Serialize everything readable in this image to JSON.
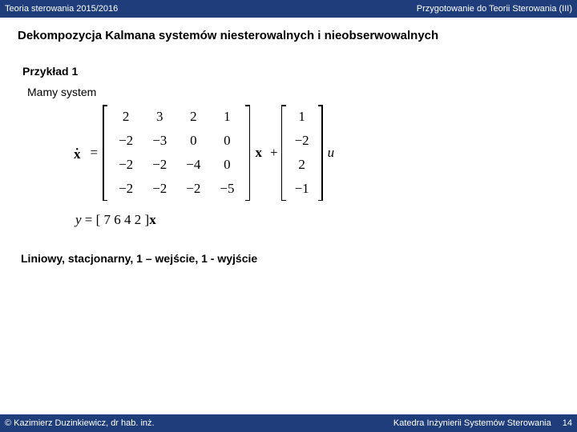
{
  "header": {
    "left": "Teoria sterowania  2015/2016",
    "right": "Przygotowanie do Teorii   Sterowania (III)"
  },
  "footer": {
    "left": "©  Kazimierz Duzinkiewicz, dr hab. inż.",
    "right": "Katedra Inżynierii Systemów Sterowania",
    "page": "14"
  },
  "title": "Dekompozycja Kalmana systemów niesterowalnych i nieobserwowalnych",
  "example": "Przykład 1",
  "mamy": "Mamy system",
  "matrixA": [
    [
      "2",
      "3",
      "2",
      "1"
    ],
    [
      "−2",
      "−3",
      "0",
      "0"
    ],
    [
      "−2",
      "−2",
      "−4",
      "0"
    ],
    [
      "−2",
      "−2",
      "−2",
      "−5"
    ]
  ],
  "vectorB": [
    "1",
    "−2",
    "2",
    "−1"
  ],
  "rowC": "[ 7  6 4  2 ]",
  "u": "u",
  "x": "x",
  "y": "y",
  "liniowy": "Liniowy, stacjonarny, 1 – wejście, 1 - wyjście"
}
